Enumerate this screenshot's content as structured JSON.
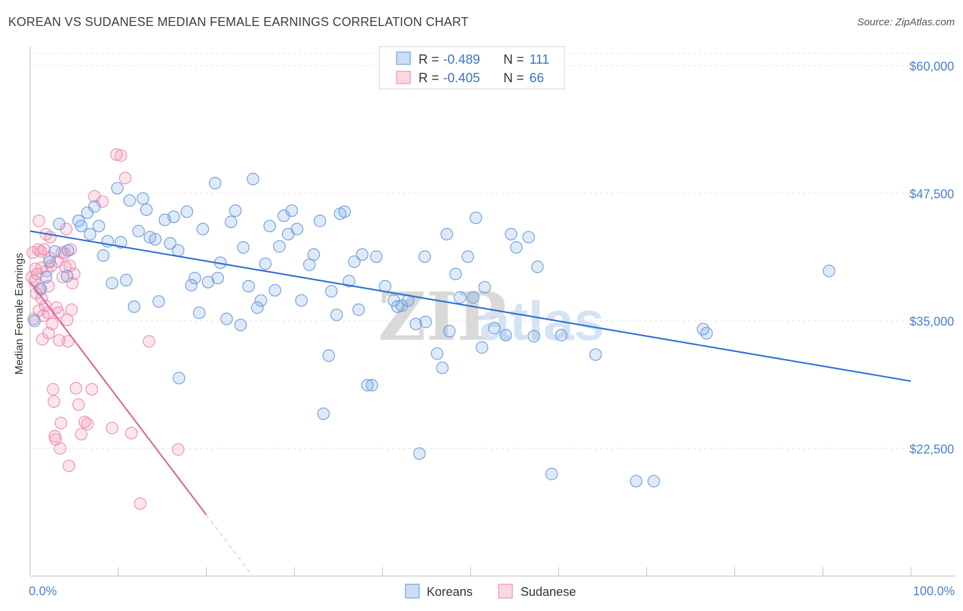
{
  "title": "KOREAN VS SUDANESE MEDIAN FEMALE EARNINGS CORRELATION CHART",
  "source": "Source: ZipAtlas.com",
  "watermark": {
    "zip": "ZIP",
    "atlas": "atlas"
  },
  "colors": {
    "korean": "#6f9fe0",
    "korean_fill": "rgba(111,159,224,0.22)",
    "korean_line": "#2d6fd1",
    "sudanese": "#ef8fb0",
    "sudanese_fill": "rgba(239,143,176,0.22)",
    "sudanese_line": "#e0659a",
    "grid": "#e3e3e3",
    "tick_text": "#4a7fd4"
  },
  "legend": {
    "rows": [
      {
        "r_label": "R = ",
        "r_value": "-0.489",
        "n_label": "N = ",
        "n_value": "111"
      },
      {
        "r_label": "R = ",
        "r_value": "-0.405",
        "n_label": "N = ",
        "n_value": "66"
      }
    ]
  },
  "bottom_legend": [
    "Koreans",
    "Sudanese"
  ],
  "chart_data": {
    "type": "scatter",
    "title": "KOREAN VS SUDANESE MEDIAN FEMALE EARNINGS CORRELATION CHART",
    "xlabel": "",
    "ylabel": "Median Female Earnings",
    "xlim": [
      0,
      100
    ],
    "ylim": [
      10000,
      61500
    ],
    "x_tick_labels": [
      "0.0%",
      "100.0%"
    ],
    "y_ticks": [
      22500,
      35000,
      47500,
      60000
    ],
    "y_tick_labels": [
      "$22,500",
      "$35,000",
      "$47,500",
      "$60,000"
    ],
    "grid": true,
    "series": [
      {
        "name": "Koreans",
        "r": -0.489,
        "n": 111,
        "trend": {
          "x": [
            0,
            100
          ],
          "y": [
            43800,
            29100
          ]
        },
        "points": [
          [
            0.5,
            35000
          ],
          [
            1.2,
            38100
          ],
          [
            1.8,
            39300
          ],
          [
            2.2,
            40800
          ],
          [
            2.8,
            41800
          ],
          [
            3.3,
            44500
          ],
          [
            4.2,
            39400
          ],
          [
            4.3,
            41900
          ],
          [
            5.5,
            44800
          ],
          [
            5.8,
            44300
          ],
          [
            6.5,
            45600
          ],
          [
            6.8,
            43500
          ],
          [
            7.3,
            46200
          ],
          [
            7.8,
            44300
          ],
          [
            8.3,
            41400
          ],
          [
            8.8,
            42800
          ],
          [
            9.3,
            38700
          ],
          [
            9.9,
            48000
          ],
          [
            10.3,
            42700
          ],
          [
            10.9,
            39000
          ],
          [
            11.3,
            46800
          ],
          [
            11.8,
            36400
          ],
          [
            12.3,
            43800
          ],
          [
            12.8,
            47000
          ],
          [
            13.2,
            45900
          ],
          [
            13.6,
            43200
          ],
          [
            14.2,
            43000
          ],
          [
            14.6,
            36900
          ],
          [
            15.3,
            44900
          ],
          [
            15.9,
            42600
          ],
          [
            16.3,
            45200
          ],
          [
            16.8,
            41900
          ],
          [
            16.9,
            29400
          ],
          [
            17.8,
            45700
          ],
          [
            18.3,
            38500
          ],
          [
            18.7,
            39200
          ],
          [
            19.2,
            35800
          ],
          [
            19.6,
            44000
          ],
          [
            20.2,
            38800
          ],
          [
            21.0,
            48500
          ],
          [
            21.3,
            39200
          ],
          [
            21.6,
            40700
          ],
          [
            22.3,
            35200
          ],
          [
            22.8,
            44700
          ],
          [
            23.3,
            45800
          ],
          [
            23.9,
            34600
          ],
          [
            24.2,
            42200
          ],
          [
            24.8,
            38400
          ],
          [
            25.3,
            48900
          ],
          [
            25.8,
            36300
          ],
          [
            26.2,
            37000
          ],
          [
            26.7,
            40600
          ],
          [
            27.2,
            44300
          ],
          [
            27.8,
            38000
          ],
          [
            28.3,
            42300
          ],
          [
            28.8,
            45300
          ],
          [
            29.3,
            43500
          ],
          [
            29.7,
            45800
          ],
          [
            30.3,
            44000
          ],
          [
            30.8,
            37000
          ],
          [
            31.7,
            40500
          ],
          [
            32.2,
            41500
          ],
          [
            32.9,
            44800
          ],
          [
            33.3,
            25900
          ],
          [
            33.9,
            31600
          ],
          [
            34.2,
            37900
          ],
          [
            34.8,
            35600
          ],
          [
            35.2,
            45500
          ],
          [
            35.7,
            45700
          ],
          [
            36.2,
            38900
          ],
          [
            36.8,
            40800
          ],
          [
            37.3,
            36100
          ],
          [
            37.7,
            41500
          ],
          [
            38.3,
            28700
          ],
          [
            38.8,
            28700
          ],
          [
            39.3,
            41300
          ],
          [
            40.3,
            38400
          ],
          [
            41.3,
            37000
          ],
          [
            41.7,
            36400
          ],
          [
            42.2,
            36500
          ],
          [
            42.9,
            37000
          ],
          [
            43.8,
            34700
          ],
          [
            44.2,
            22000
          ],
          [
            44.8,
            41300
          ],
          [
            44.9,
            34900
          ],
          [
            46.2,
            31800
          ],
          [
            46.8,
            30400
          ],
          [
            47.3,
            43500
          ],
          [
            47.6,
            34000
          ],
          [
            48.3,
            39600
          ],
          [
            48.8,
            37300
          ],
          [
            49.7,
            41300
          ],
          [
            50.3,
            37300
          ],
          [
            50.6,
            45100
          ],
          [
            51.3,
            32400
          ],
          [
            51.6,
            38300
          ],
          [
            52.7,
            34300
          ],
          [
            54.0,
            33600
          ],
          [
            54.6,
            43500
          ],
          [
            55.2,
            42200
          ],
          [
            56.6,
            43200
          ],
          [
            57.2,
            33500
          ],
          [
            57.6,
            40300
          ],
          [
            59.2,
            20000
          ],
          [
            60.3,
            33600
          ],
          [
            64.2,
            31700
          ],
          [
            68.8,
            19300
          ],
          [
            70.8,
            19300
          ],
          [
            76.4,
            34200
          ],
          [
            76.8,
            33800
          ],
          [
            90.7,
            39900
          ]
        ]
      },
      {
        "name": "Sudanese",
        "r": -0.405,
        "n": 66,
        "trend": {
          "x": [
            0,
            20
          ],
          "y": [
            38800,
            16000
          ]
        },
        "trend_dashed": {
          "x": [
            20,
            25
          ],
          "y": [
            16000,
            10300
          ]
        },
        "points": [
          [
            0.2,
            39300
          ],
          [
            0.3,
            41700
          ],
          [
            0.4,
            35200
          ],
          [
            0.5,
            38900
          ],
          [
            0.6,
            40100
          ],
          [
            0.7,
            37700
          ],
          [
            0.8,
            39600
          ],
          [
            0.9,
            42000
          ],
          [
            1.0,
            36000
          ],
          [
            1.0,
            44800
          ],
          [
            1.1,
            38200
          ],
          [
            1.2,
            41800
          ],
          [
            1.3,
            40200
          ],
          [
            1.3,
            37200
          ],
          [
            1.4,
            33200
          ],
          [
            1.5,
            35500
          ],
          [
            1.6,
            42000
          ],
          [
            1.7,
            36500
          ],
          [
            1.8,
            43500
          ],
          [
            1.9,
            39900
          ],
          [
            2.0,
            35800
          ],
          [
            2.1,
            38400
          ],
          [
            2.2,
            41200
          ],
          [
            2.3,
            43200
          ],
          [
            2.4,
            40400
          ],
          [
            2.5,
            34700
          ],
          [
            2.6,
            28300
          ],
          [
            2.7,
            27100
          ],
          [
            2.8,
            23700
          ],
          [
            2.9,
            23400
          ],
          [
            3.0,
            36300
          ],
          [
            3.1,
            40800
          ],
          [
            3.2,
            35800
          ],
          [
            3.3,
            33100
          ],
          [
            3.4,
            22500
          ],
          [
            3.5,
            25000
          ],
          [
            3.6,
            41700
          ],
          [
            3.7,
            39300
          ],
          [
            3.9,
            41600
          ],
          [
            4.0,
            40300
          ],
          [
            4.1,
            44000
          ],
          [
            4.2,
            35100
          ],
          [
            4.3,
            33000
          ],
          [
            4.4,
            20800
          ],
          [
            4.5,
            40400
          ],
          [
            4.6,
            42000
          ],
          [
            4.7,
            36100
          ],
          [
            4.8,
            38700
          ],
          [
            5.0,
            39600
          ],
          [
            5.2,
            28400
          ],
          [
            5.5,
            26800
          ],
          [
            5.8,
            23900
          ],
          [
            6.2,
            25100
          ],
          [
            6.5,
            24900
          ],
          [
            7.0,
            28300
          ],
          [
            7.3,
            47200
          ],
          [
            8.2,
            46700
          ],
          [
            9.3,
            24500
          ],
          [
            9.8,
            51300
          ],
          [
            10.3,
            51200
          ],
          [
            10.8,
            49000
          ],
          [
            11.5,
            24000
          ],
          [
            12.5,
            17100
          ],
          [
            13.5,
            33000
          ],
          [
            16.8,
            22400
          ],
          [
            2.1,
            33800
          ]
        ]
      }
    ]
  }
}
